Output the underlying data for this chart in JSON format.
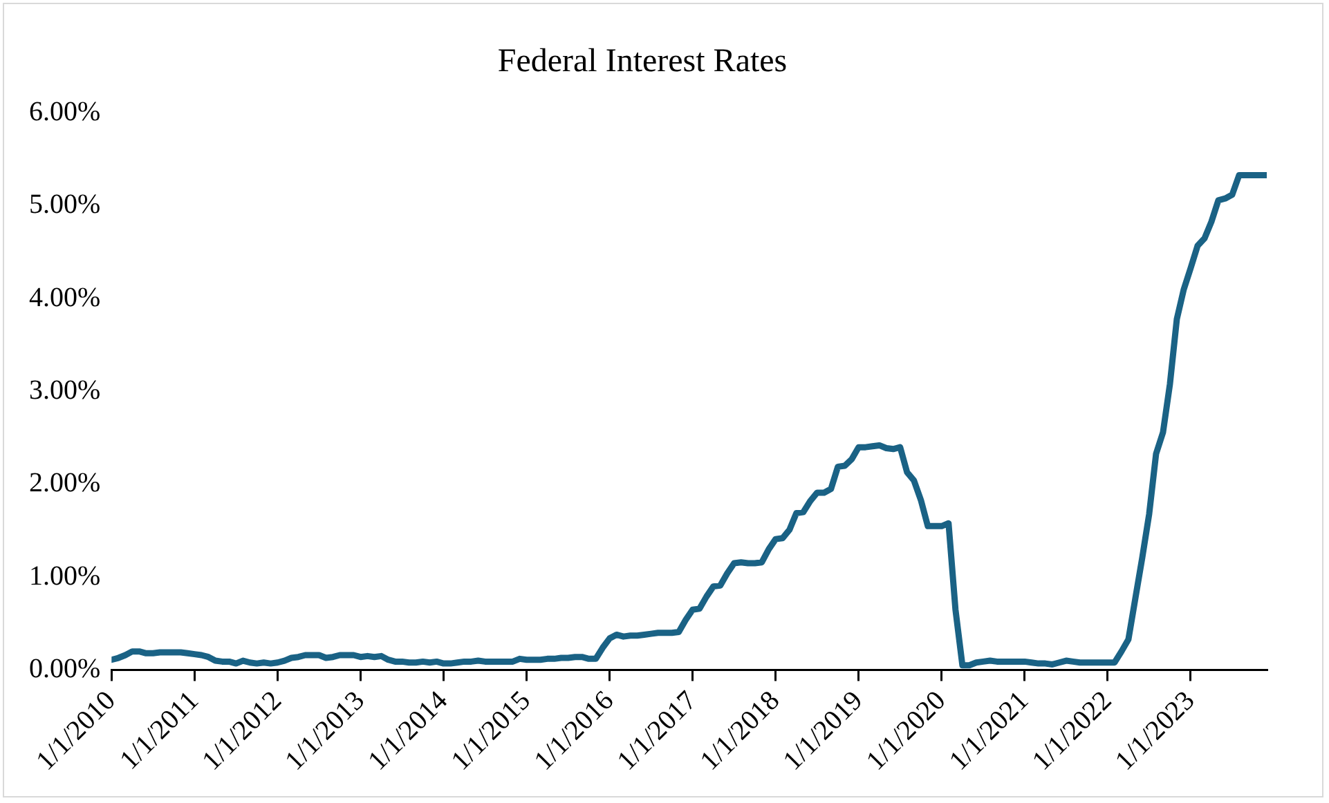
{
  "chart_data": {
    "type": "line",
    "title": "Federal Interest Rates",
    "x": [
      "2010-01",
      "2010-02",
      "2010-03",
      "2010-04",
      "2010-05",
      "2010-06",
      "2010-07",
      "2010-08",
      "2010-09",
      "2010-10",
      "2010-11",
      "2010-12",
      "2011-01",
      "2011-02",
      "2011-03",
      "2011-04",
      "2011-05",
      "2011-06",
      "2011-07",
      "2011-08",
      "2011-09",
      "2011-10",
      "2011-11",
      "2011-12",
      "2012-01",
      "2012-02",
      "2012-03",
      "2012-04",
      "2012-05",
      "2012-06",
      "2012-07",
      "2012-08",
      "2012-09",
      "2012-10",
      "2012-11",
      "2012-12",
      "2013-01",
      "2013-02",
      "2013-03",
      "2013-04",
      "2013-05",
      "2013-06",
      "2013-07",
      "2013-08",
      "2013-09",
      "2013-10",
      "2013-11",
      "2013-12",
      "2014-01",
      "2014-02",
      "2014-03",
      "2014-04",
      "2014-05",
      "2014-06",
      "2014-07",
      "2014-08",
      "2014-09",
      "2014-10",
      "2014-11",
      "2014-12",
      "2015-01",
      "2015-02",
      "2015-03",
      "2015-04",
      "2015-05",
      "2015-06",
      "2015-07",
      "2015-08",
      "2015-09",
      "2015-10",
      "2015-11",
      "2015-12",
      "2016-01",
      "2016-02",
      "2016-03",
      "2016-04",
      "2016-05",
      "2016-06",
      "2016-07",
      "2016-08",
      "2016-09",
      "2016-10",
      "2016-11",
      "2016-12",
      "2017-01",
      "2017-02",
      "2017-03",
      "2017-04",
      "2017-05",
      "2017-06",
      "2017-07",
      "2017-08",
      "2017-09",
      "2017-10",
      "2017-11",
      "2017-12",
      "2018-01",
      "2018-02",
      "2018-03",
      "2018-04",
      "2018-05",
      "2018-06",
      "2018-07",
      "2018-08",
      "2018-09",
      "2018-10",
      "2018-11",
      "2018-12",
      "2019-01",
      "2019-02",
      "2019-03",
      "2019-04",
      "2019-05",
      "2019-06",
      "2019-07",
      "2019-08",
      "2019-09",
      "2019-10",
      "2019-11",
      "2019-12",
      "2020-01",
      "2020-02",
      "2020-03",
      "2020-04",
      "2020-05",
      "2020-06",
      "2020-07",
      "2020-08",
      "2020-09",
      "2020-10",
      "2020-11",
      "2020-12",
      "2021-01",
      "2021-02",
      "2021-03",
      "2021-04",
      "2021-05",
      "2021-06",
      "2021-07",
      "2021-08",
      "2021-09",
      "2021-10",
      "2021-11",
      "2021-12",
      "2022-01",
      "2022-02",
      "2022-03",
      "2022-04",
      "2022-05",
      "2022-06",
      "2022-07",
      "2022-08",
      "2022-09",
      "2022-10",
      "2022-11",
      "2022-12",
      "2023-01",
      "2023-02",
      "2023-03",
      "2023-04",
      "2023-05",
      "2023-06",
      "2023-07",
      "2023-08",
      "2023-09",
      "2023-10",
      "2023-11",
      "2023-12"
    ],
    "series": [
      {
        "color": "#1a6285",
        "values": [
          0.11,
          0.13,
          0.16,
          0.2,
          0.2,
          0.18,
          0.18,
          0.19,
          0.19,
          0.19,
          0.19,
          0.18,
          0.17,
          0.16,
          0.14,
          0.1,
          0.09,
          0.09,
          0.07,
          0.1,
          0.08,
          0.07,
          0.08,
          0.07,
          0.08,
          0.1,
          0.13,
          0.14,
          0.16,
          0.16,
          0.16,
          0.13,
          0.14,
          0.16,
          0.16,
          0.16,
          0.14,
          0.15,
          0.14,
          0.15,
          0.11,
          0.09,
          0.09,
          0.08,
          0.08,
          0.09,
          0.08,
          0.09,
          0.07,
          0.07,
          0.08,
          0.09,
          0.09,
          0.1,
          0.09,
          0.09,
          0.09,
          0.09,
          0.09,
          0.12,
          0.11,
          0.11,
          0.11,
          0.12,
          0.12,
          0.13,
          0.13,
          0.14,
          0.14,
          0.12,
          0.12,
          0.24,
          0.34,
          0.38,
          0.36,
          0.37,
          0.37,
          0.38,
          0.39,
          0.4,
          0.4,
          0.4,
          0.41,
          0.54,
          0.65,
          0.66,
          0.79,
          0.9,
          0.91,
          1.04,
          1.15,
          1.16,
          1.15,
          1.15,
          1.16,
          1.3,
          1.41,
          1.42,
          1.51,
          1.69,
          1.7,
          1.82,
          1.91,
          1.91,
          1.95,
          2.19,
          2.2,
          2.27,
          2.4,
          2.4,
          2.41,
          2.42,
          2.39,
          2.38,
          2.4,
          2.13,
          2.04,
          1.83,
          1.55,
          1.55,
          1.55,
          1.58,
          0.65,
          0.05,
          0.05,
          0.08,
          0.09,
          0.1,
          0.09,
          0.09,
          0.09,
          0.09,
          0.09,
          0.08,
          0.07,
          0.07,
          0.06,
          0.08,
          0.1,
          0.09,
          0.08,
          0.08,
          0.08,
          0.08,
          0.08,
          0.08,
          0.2,
          0.33,
          0.77,
          1.21,
          1.68,
          2.33,
          2.56,
          3.08,
          3.78,
          4.1,
          4.33,
          4.57,
          4.65,
          4.83,
          5.06,
          5.08,
          5.12,
          5.33,
          5.33,
          5.33,
          5.33,
          5.33
        ]
      }
    ],
    "xlim": [
      "2010-01",
      "2023-12"
    ],
    "xticks": [
      {
        "value": "2010-01",
        "label": "1/1/2010"
      },
      {
        "value": "2011-01",
        "label": "1/1/2011"
      },
      {
        "value": "2012-01",
        "label": "1/1/2012"
      },
      {
        "value": "2013-01",
        "label": "1/1/2013"
      },
      {
        "value": "2014-01",
        "label": "1/1/2014"
      },
      {
        "value": "2015-01",
        "label": "1/1/2015"
      },
      {
        "value": "2016-01",
        "label": "1/1/2016"
      },
      {
        "value": "2017-01",
        "label": "1/1/2017"
      },
      {
        "value": "2018-01",
        "label": "1/1/2018"
      },
      {
        "value": "2019-01",
        "label": "1/1/2019"
      },
      {
        "value": "2020-01",
        "label": "1/1/2020"
      },
      {
        "value": "2021-01",
        "label": "1/1/2021"
      },
      {
        "value": "2022-01",
        "label": "1/1/2022"
      },
      {
        "value": "2023-01",
        "label": "1/1/2023"
      }
    ],
    "ylim": [
      0,
      6
    ],
    "yticks": [
      {
        "value": 0,
        "label": "0.00%"
      },
      {
        "value": 1,
        "label": "1.00%"
      },
      {
        "value": 2,
        "label": "2.00%"
      },
      {
        "value": 3,
        "label": "3.00%"
      },
      {
        "value": 4,
        "label": "4.00%"
      },
      {
        "value": 5,
        "label": "5.00%"
      },
      {
        "value": 6,
        "label": "6.00%"
      }
    ],
    "grid": false,
    "legend": false,
    "marker": "none",
    "line_style": "solid"
  }
}
